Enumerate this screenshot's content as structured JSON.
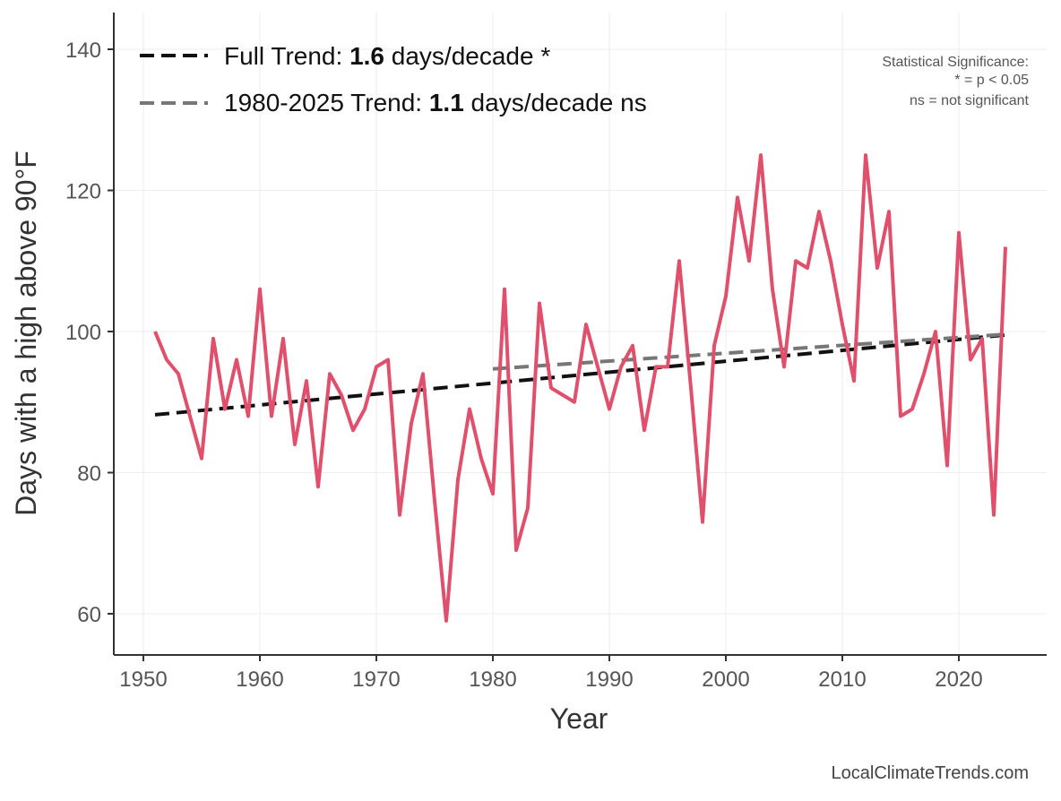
{
  "chart_data": {
    "type": "line",
    "title": "",
    "xlabel": "Year",
    "ylabel": "Days with a high above 90°F",
    "xlim": [
      1947.5,
      2027.5
    ],
    "ylim": [
      54,
      145
    ],
    "x_ticks": [
      1950,
      1960,
      1970,
      1980,
      1990,
      2000,
      2010,
      2020
    ],
    "y_ticks": [
      60,
      80,
      100,
      120,
      140
    ],
    "grid": true,
    "legend_placement": "top-left",
    "series": [
      {
        "color": "#e04f6c",
        "x": [
          1951,
          1952,
          1953,
          1954,
          1955,
          1956,
          1957,
          1958,
          1959,
          1960,
          1961,
          1962,
          1963,
          1964,
          1965,
          1966,
          1967,
          1968,
          1969,
          1970,
          1971,
          1972,
          1973,
          1974,
          1975,
          1976,
          1977,
          1978,
          1979,
          1980,
          1981,
          1982,
          1983,
          1984,
          1985,
          1986,
          1987,
          1988,
          1989,
          1990,
          1991,
          1992,
          1993,
          1994,
          1995,
          1996,
          1997,
          1998,
          1999,
          2000,
          2001,
          2002,
          2003,
          2004,
          2005,
          2006,
          2007,
          2008,
          2009,
          2010,
          2011,
          2012,
          2013,
          2014,
          2015,
          2016,
          2017,
          2018,
          2019,
          2020,
          2021,
          2022,
          2023,
          2024
        ],
        "values": [
          100,
          96,
          94,
          88,
          82,
          99,
          89,
          96,
          88,
          106,
          88,
          99,
          84,
          93,
          78,
          94,
          91,
          86,
          89,
          95,
          96,
          74,
          87,
          94,
          76,
          59,
          79,
          89,
          82,
          77,
          106,
          69,
          75,
          104,
          92,
          91,
          90,
          101,
          95,
          89,
          95,
          98,
          86,
          95,
          95,
          110,
          92,
          73,
          98,
          105,
          119,
          110,
          125,
          106,
          95,
          110,
          109,
          117,
          110,
          101,
          93,
          125,
          109,
          117,
          88,
          89,
          94,
          100,
          81,
          114,
          96,
          99,
          74,
          112
        ]
      }
    ],
    "trends": [
      {
        "label_prefix": "Full Trend: ",
        "rate": "1.6",
        "label_suffix": " days/decade *",
        "color": "#111111",
        "x": [
          1951,
          2024
        ],
        "values": [
          88.2,
          99.5
        ]
      },
      {
        "label_prefix": "1980-2025 Trend: ",
        "rate": "1.1",
        "label_suffix": " days/decade ns",
        "color": "#777777",
        "x": [
          1980,
          2024
        ],
        "values": [
          94.7,
          99.6
        ]
      }
    ],
    "annotation": [
      "Statistical Significance:",
      "* = p < 0.05",
      "ns = not significant"
    ],
    "caption": "LocalClimateTrends.com"
  }
}
